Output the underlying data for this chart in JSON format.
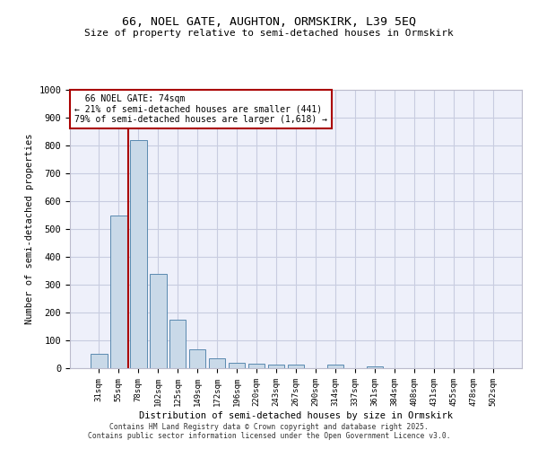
{
  "title_line1": "66, NOEL GATE, AUGHTON, ORMSKIRK, L39 5EQ",
  "title_line2": "Size of property relative to semi-detached houses in Ormskirk",
  "xlabel": "Distribution of semi-detached houses by size in Ormskirk",
  "ylabel": "Number of semi-detached properties",
  "categories": [
    "31sqm",
    "55sqm",
    "78sqm",
    "102sqm",
    "125sqm",
    "149sqm",
    "172sqm",
    "196sqm",
    "220sqm",
    "243sqm",
    "267sqm",
    "290sqm",
    "314sqm",
    "337sqm",
    "361sqm",
    "384sqm",
    "408sqm",
    "431sqm",
    "455sqm",
    "478sqm",
    "502sqm"
  ],
  "values": [
    52,
    550,
    820,
    340,
    175,
    68,
    35,
    18,
    15,
    12,
    12,
    0,
    12,
    0,
    6,
    0,
    0,
    0,
    0,
    0,
    0
  ],
  "bar_color": "#c9d9e8",
  "bar_edge_color": "#5a8ab0",
  "property_label": "66 NOEL GATE: 74sqm",
  "pct_smaller": 21,
  "pct_larger": 79,
  "count_smaller": 441,
  "count_larger": 1618,
  "vline_x_index": 1.5,
  "ylim": [
    0,
    1000
  ],
  "yticks": [
    0,
    100,
    200,
    300,
    400,
    500,
    600,
    700,
    800,
    900,
    1000
  ],
  "grid_color": "#c8cce0",
  "background_color": "#eef0fa",
  "vline_color": "#aa0000",
  "box_color": "#aa0000",
  "footer_line1": "Contains HM Land Registry data © Crown copyright and database right 2025.",
  "footer_line2": "Contains public sector information licensed under the Open Government Licence v3.0."
}
